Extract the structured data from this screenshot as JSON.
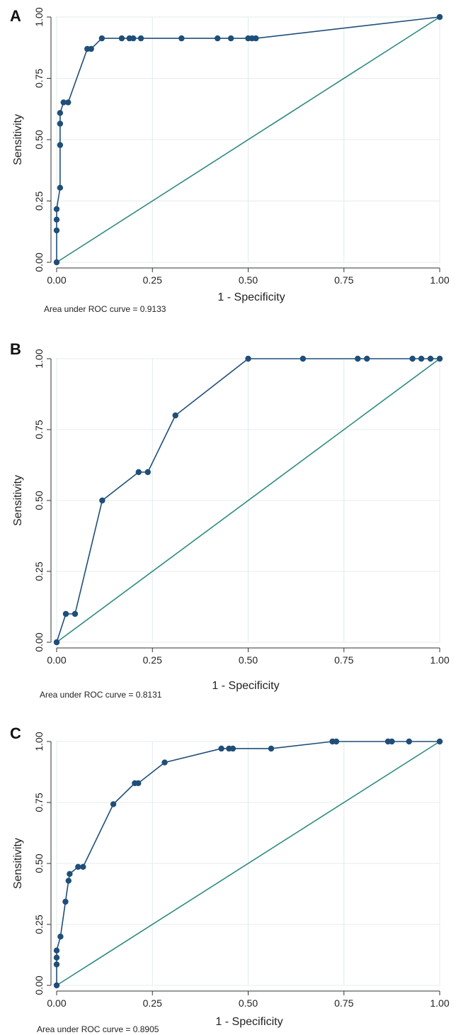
{
  "colors": {
    "roc_line": "#1f4e79",
    "roc_marker": "#1f4e79",
    "reference_line": "#2e8b80",
    "grid": "#e4ecef",
    "axis": "#333333",
    "plot_border": "#777777"
  },
  "chart_data": [
    {
      "type": "line",
      "panel_label": "A",
      "xlabel": "1 - Specificity",
      "ylabel": "Sensitivity",
      "xlim": [
        0,
        1
      ],
      "ylim": [
        0,
        1
      ],
      "x_ticks": [
        "0.00",
        "0.25",
        "0.50",
        "0.75",
        "1.00"
      ],
      "y_ticks": [
        "0.00",
        "0.25",
        "0.50",
        "0.75",
        "1.00"
      ],
      "grid": true,
      "reference_line": [
        [
          0,
          0
        ],
        [
          1,
          1
        ]
      ],
      "annotation": "Area under ROC curve = 0.9133",
      "series": [
        {
          "points": [
            [
              0,
              0
            ],
            [
              0,
              0.13
            ],
            [
              0,
              0.174
            ],
            [
              0,
              0.217
            ],
            [
              0.009,
              0.304
            ],
            [
              0.009,
              0.478
            ],
            [
              0.009,
              0.565
            ],
            [
              0.009,
              0.609
            ],
            [
              0.018,
              0.652
            ],
            [
              0.03,
              0.652
            ],
            [
              0.08,
              0.87
            ],
            [
              0.09,
              0.87
            ],
            [
              0.118,
              0.913
            ],
            [
              0.17,
              0.913
            ],
            [
              0.19,
              0.913
            ],
            [
              0.2,
              0.913
            ],
            [
              0.22,
              0.913
            ],
            [
              0.326,
              0.913
            ],
            [
              0.42,
              0.913
            ],
            [
              0.455,
              0.913
            ],
            [
              0.5,
              0.913
            ],
            [
              0.51,
              0.913
            ],
            [
              0.52,
              0.913
            ],
            [
              1,
              1
            ]
          ]
        }
      ]
    },
    {
      "type": "line",
      "panel_label": "B",
      "xlabel": "1 - Specificity",
      "ylabel": "Sensitivity",
      "xlim": [
        0,
        1
      ],
      "ylim": [
        0,
        1
      ],
      "x_ticks": [
        "0.00",
        "0.25",
        "0.50",
        "0.75",
        "1.00"
      ],
      "y_ticks": [
        "0.00",
        "0.25",
        "0.50",
        "0.75",
        "1.00"
      ],
      "grid": true,
      "reference_line": [
        [
          0,
          0
        ],
        [
          1,
          1
        ]
      ],
      "annotation": "Area under ROC curve = 0.8131",
      "series": [
        {
          "points": [
            [
              0,
              0
            ],
            [
              0.024,
              0.1
            ],
            [
              0.048,
              0.1
            ],
            [
              0.119,
              0.5
            ],
            [
              0.214,
              0.6
            ],
            [
              0.238,
              0.6
            ],
            [
              0.31,
              0.8
            ],
            [
              0.5,
              1
            ],
            [
              0.643,
              1
            ],
            [
              0.786,
              1
            ],
            [
              0.81,
              1
            ],
            [
              0.929,
              1
            ],
            [
              0.952,
              1
            ],
            [
              0.976,
              1
            ],
            [
              1,
              1
            ]
          ]
        }
      ]
    },
    {
      "type": "line",
      "panel_label": "C",
      "xlabel": "1 - Specificity",
      "ylabel": "Sensitivity",
      "xlim": [
        0,
        1
      ],
      "ylim": [
        0,
        1
      ],
      "x_ticks": [
        "0.00",
        "0.25",
        "0.50",
        "0.75",
        "1.00"
      ],
      "y_ticks": [
        "0.00",
        "0.25",
        "0.50",
        "0.75",
        "1.00"
      ],
      "grid": true,
      "reference_line": [
        [
          0,
          0
        ],
        [
          1,
          1
        ]
      ],
      "annotation": "Area under ROC curve = 0.8905",
      "series": [
        {
          "points": [
            [
              0,
              0
            ],
            [
              0,
              0.086
            ],
            [
              0,
              0.114
            ],
            [
              0,
              0.143
            ],
            [
              0.01,
              0.2
            ],
            [
              0.023,
              0.343
            ],
            [
              0.031,
              0.429
            ],
            [
              0.034,
              0.457
            ],
            [
              0.056,
              0.486
            ],
            [
              0.069,
              0.486
            ],
            [
              0.148,
              0.743
            ],
            [
              0.204,
              0.829
            ],
            [
              0.213,
              0.829
            ],
            [
              0.282,
              0.914
            ],
            [
              0.43,
              0.971
            ],
            [
              0.45,
              0.971
            ],
            [
              0.46,
              0.971
            ],
            [
              0.56,
              0.971
            ],
            [
              0.72,
              1
            ],
            [
              0.73,
              1
            ],
            [
              0.865,
              1
            ],
            [
              0.875,
              1
            ],
            [
              0.92,
              1
            ],
            [
              1,
              1
            ]
          ]
        }
      ]
    }
  ]
}
